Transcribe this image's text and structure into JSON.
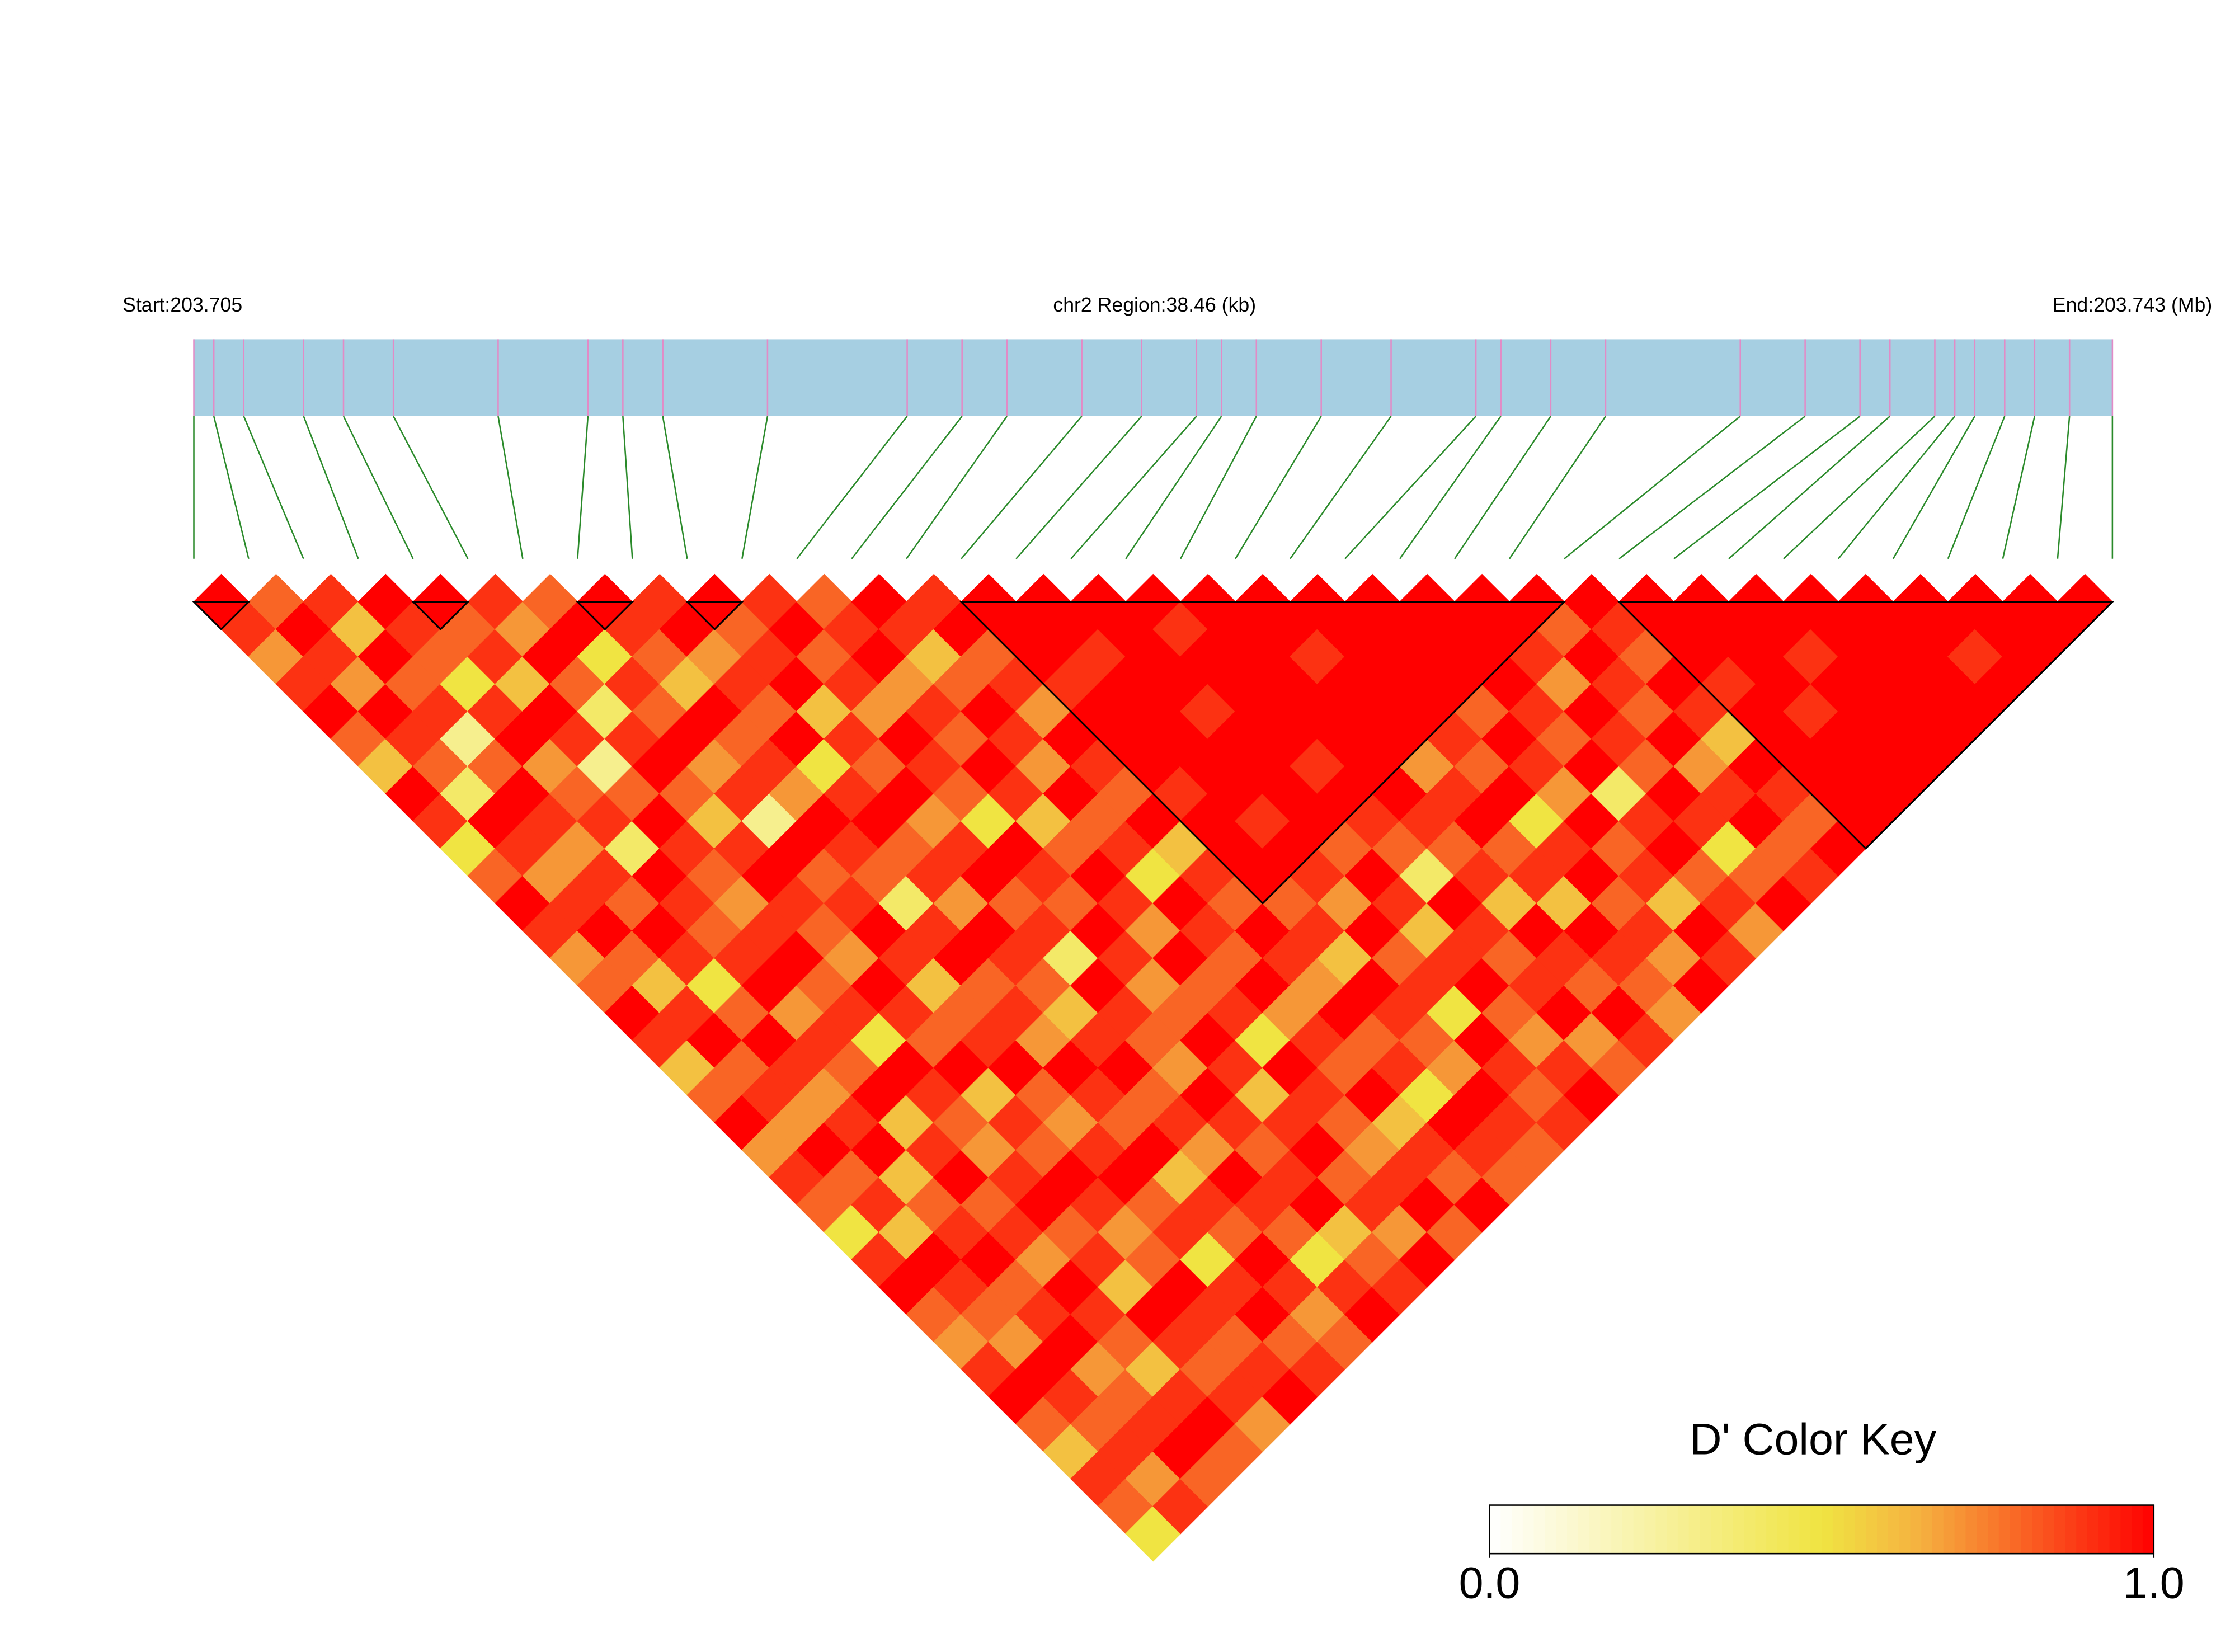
{
  "chart_data": {
    "type": "ldheatmap",
    "start_label": "Start:203.705",
    "title": "chr2 Region:38.46 (kb)",
    "end_label": "End:203.743 (Mb)",
    "positions": [
      0,
      0.4,
      1.0,
      2.2,
      3.0,
      4.0,
      6.1,
      7.9,
      8.6,
      9.4,
      11.5,
      14.3,
      15.4,
      16.3,
      17.8,
      19.0,
      20.1,
      20.6,
      21.3,
      22.6,
      24.0,
      25.7,
      26.2,
      27.2,
      28.3,
      31.0,
      32.3,
      33.4,
      34.0,
      34.9,
      35.3,
      35.7,
      36.3,
      36.9,
      37.6,
      38.46
    ],
    "xlim": [
      0,
      38.46
    ],
    "blocks": [
      [
        0,
        1
      ],
      [
        4,
        5
      ],
      [
        7,
        8
      ],
      [
        9,
        10
      ],
      [
        14,
        25
      ],
      [
        26,
        35
      ]
    ],
    "ld": [
      [
        1,
        0.9,
        0.7,
        0.9,
        1,
        0.8,
        0.6,
        1,
        0.9,
        0.5,
        0.8,
        1,
        0.9,
        0.7,
        0.8,
        1,
        0.9,
        0.6,
        0.8,
        1,
        0.7,
        0.9,
        0.8,
        0.5,
        0.9,
        1,
        0.8,
        0.7,
        0.9,
        1,
        0.8,
        0.6,
        0.9,
        0.8,
        0.5
      ],
      [
        0.8,
        1,
        0.9,
        0.7,
        1,
        0.9,
        0.8,
        0.4,
        1,
        0.9,
        0.7,
        0.9,
        1,
        0.8,
        0.6,
        0.9,
        1,
        0.8,
        0.9,
        0.7,
        1,
        0.8,
        0.9,
        0.6,
        1,
        0.9,
        0.8,
        0.7,
        1,
        0.9,
        0.8,
        0.9,
        0.7,
        0.9
      ],
      [
        0.9,
        0.6,
        1,
        0.8,
        0.9,
        0.3,
        0.8,
        1,
        0.9,
        0.7,
        0.9,
        0.8,
        1,
        0.9,
        0.5,
        0.8,
        1,
        0.9,
        0.7,
        0.9,
        1,
        0.6,
        0.8,
        0.9,
        1,
        0.8,
        0.9,
        1,
        0.7,
        0.8,
        0.9,
        1,
        0.8
      ],
      [
        1,
        0.9,
        0.8,
        0.5,
        0.9,
        1,
        0.7,
        0.8,
        0.9,
        0.4,
        1,
        0.9,
        0.8,
        0.9,
        1,
        0.7,
        0.9,
        0.8,
        1,
        0.6,
        0.9,
        1,
        0.8,
        0.9,
        0.7,
        1,
        0.9,
        0.8,
        0.6,
        0.9,
        1,
        0.8
      ],
      [
        1,
        0.8,
        0.9,
        0.6,
        1,
        0.9,
        0.3,
        0.8,
        1,
        0.9,
        0.8,
        0.7,
        0.9,
        1,
        0.8,
        0.9,
        0.5,
        1,
        0.9,
        0.8,
        0.7,
        0.9,
        1,
        0.8,
        0.9,
        0.6,
        1,
        0.9,
        0.8,
        0.9,
        0.7
      ],
      [
        0.9,
        0.7,
        1,
        0.8,
        0.4,
        0.9,
        1,
        0.8,
        0.6,
        0.9,
        1,
        0.9,
        0.8,
        0.7,
        1,
        0.9,
        0.8,
        1,
        0.6,
        0.9,
        0.8,
        1,
        0.9,
        0.7,
        0.8,
        1,
        0.9,
        0.8,
        0.9,
        1
      ],
      [
        0.8,
        1,
        0.5,
        0.9,
        0.8,
        1,
        0.7,
        0.9,
        0.3,
        1,
        0.8,
        0.9,
        1,
        0.9,
        0.6,
        0.8,
        0.9,
        1,
        0.8,
        0.7,
        0.9,
        1,
        0.8,
        0.9,
        0.5,
        0.9,
        1,
        0.8,
        0.9
      ],
      [
        1,
        0.9,
        0.8,
        0.6,
        1,
        0.8,
        0.9,
        0.7,
        1,
        0.9,
        0.8,
        0.4,
        0.9,
        1,
        0.8,
        0.9,
        0.7,
        1,
        0.9,
        0.8,
        1,
        0.6,
        0.9,
        0.8,
        1,
        0.9,
        0.7,
        0.8
      ],
      [
        0.9,
        1,
        0.7,
        0.9,
        0.8,
        1,
        0.5,
        0.9,
        1,
        0.8,
        0.9,
        0.7,
        1,
        0.9,
        0.8,
        0.6,
        0.9,
        1,
        0.8,
        0.9,
        0.7,
        1,
        0.9,
        0.8,
        0.5,
        0.9,
        1
      ],
      [
        1,
        0.8,
        0.9,
        1,
        0.6,
        0.9,
        0.8,
        1,
        0.7,
        0.9,
        1,
        0.8,
        0.9,
        0.4,
        1,
        0.9,
        0.8,
        0.7,
        1,
        0.9,
        0.8,
        0.9,
        1,
        0.6,
        0.8,
        0.9
      ],
      [
        0.9,
        1,
        0.8,
        0.9,
        0.7,
        1,
        0.9,
        0.8,
        0.5,
        1,
        0.9,
        0.8,
        1,
        0.9,
        0.7,
        0.8,
        1,
        0.9,
        0.6,
        0.9,
        1,
        0.8,
        0.9,
        0.7,
        1
      ],
      [
        0.8,
        0.9,
        1,
        0.7,
        0.9,
        0.8,
        1,
        0.9,
        0.6,
        0.8,
        1,
        0.9,
        0.7,
        1,
        0.8,
        0.9,
        0.5,
        1,
        0.9,
        0.8,
        0.7,
        0.9,
        1,
        0.8
      ],
      [
        1,
        0.9,
        0.6,
        0.8,
        1,
        0.9,
        0.7,
        1,
        0.8,
        0.9,
        0.5,
        1,
        0.9,
        0.8,
        1,
        0.7,
        0.9,
        0.8,
        1,
        0.6,
        0.9,
        0.8,
        1
      ],
      [
        0.9,
        1,
        0.8,
        0.9,
        0.7,
        1,
        0.9,
        0.8,
        1,
        0.6,
        0.9,
        0.8,
        1,
        0.9,
        0.7,
        1,
        0.8,
        0.9,
        0.5,
        1,
        0.9,
        0.8
      ],
      [
        1,
        1,
        1,
        0.9,
        1,
        1,
        1,
        0.9,
        1,
        1,
        1,
        0.8,
        0.9,
        0.6,
        1,
        0.9,
        0.8,
        0.7,
        1,
        0.9,
        0.8
      ],
      [
        1,
        1,
        0.9,
        1,
        1,
        1,
        1,
        1,
        0.9,
        1,
        0.9,
        0.7,
        1,
        0.8,
        0.9,
        0.5,
        1,
        0.9,
        0.8,
        0.9
      ],
      [
        1,
        1,
        1,
        1,
        0.9,
        1,
        1,
        1,
        1,
        0.8,
        1,
        0.9,
        0.6,
        0.9,
        1,
        0.8,
        0.7,
        0.9,
        1
      ],
      [
        1,
        0.9,
        1,
        1,
        1,
        1,
        0.9,
        1,
        0.9,
        0.8,
        0.4,
        1,
        0.9,
        0.8,
        0.9,
        1,
        0.7,
        0.8
      ],
      [
        1,
        1,
        1,
        1,
        1,
        1,
        1,
        1,
        0.9,
        0.8,
        0.9,
        0.6,
        1,
        0.9,
        0.8,
        1,
        0.9
      ],
      [
        1,
        1,
        0.9,
        1,
        1,
        1,
        0.7,
        0.9,
        1,
        0.8,
        0.9,
        0.6,
        1,
        0.9,
        0.8,
        0.7
      ],
      [
        1,
        1,
        1,
        1,
        1,
        0.9,
        0.8,
        1,
        0.5,
        0.9,
        1,
        0.8,
        0.9,
        0.7,
        1
      ],
      [
        1,
        1,
        1,
        1,
        0.8,
        1,
        0.9,
        0.7,
        1,
        0.8,
        0.9,
        0.6,
        1,
        0.9
      ],
      [
        1,
        1,
        1,
        1,
        0.9,
        0.8,
        1,
        0.4,
        0.9,
        1,
        0.8,
        0.9,
        0.7
      ],
      [
        1,
        1,
        0.9,
        0.7,
        1,
        0.9,
        0.8,
        1,
        0.9,
        0.5,
        0.8,
        1
      ],
      [
        1,
        0.8,
        1,
        0.9,
        0.8,
        1,
        0.7,
        0.9,
        1,
        0.8,
        0.9
      ],
      [
        1,
        0.9,
        0.8,
        1,
        0.9,
        0.6,
        1,
        0.9,
        0.8,
        1
      ],
      [
        1,
        1,
        1,
        0.9,
        1,
        1,
        1,
        1,
        1
      ],
      [
        1,
        1,
        1,
        1,
        0.9,
        1,
        1,
        1
      ],
      [
        1,
        1,
        0.9,
        1,
        1,
        1,
        1
      ],
      [
        1,
        1,
        1,
        1,
        1,
        1
      ],
      [
        1,
        1,
        1,
        1,
        1
      ],
      [
        1,
        1,
        0.9,
        1
      ],
      [
        1,
        1,
        1
      ],
      [
        1,
        1
      ],
      [
        1
      ]
    ],
    "colorbar": {
      "title": "D' Color Key",
      "lim": [
        0,
        1
      ],
      "ticks": [
        {
          "value": 0,
          "label": "0.0"
        },
        {
          "value": 1,
          "label": "1.0"
        }
      ]
    }
  }
}
